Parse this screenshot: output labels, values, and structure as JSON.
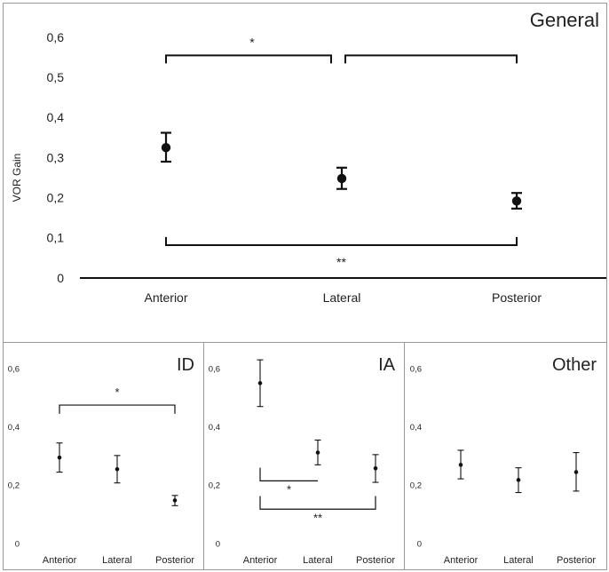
{
  "colors": {
    "ink": "#111111",
    "frame": "#999999",
    "text": "#222222"
  },
  "chart_data": [
    {
      "type": "scatter",
      "title": "General",
      "ylabel": "VOR Gain",
      "xlabel": "",
      "categories": [
        "Anterior",
        "Lateral",
        "Posterior"
      ],
      "values": [
        0.325,
        0.248,
        0.192
      ],
      "err_low": [
        0.29,
        0.222,
        0.173
      ],
      "err_high": [
        0.362,
        0.275,
        0.212
      ],
      "ylim": [
        0,
        0.6
      ],
      "yticks": [
        "0",
        "0,1",
        "0,2",
        "0,3",
        "0,4",
        "0,5",
        "0,6"
      ],
      "brackets": [
        {
          "from": 0,
          "to": 1,
          "level": 0.555,
          "drop": 0.02,
          "side": "top",
          "label": "*"
        },
        {
          "from": 1,
          "to": 2,
          "level": 0.555,
          "drop": 0.02,
          "side": "top",
          "label": ""
        },
        {
          "from": 0,
          "to": 2,
          "level": 0.082,
          "drop": 0.02,
          "side": "bottom",
          "label": "**"
        }
      ]
    },
    {
      "type": "scatter",
      "title": "ID",
      "ylabel": "",
      "xlabel": "",
      "categories": [
        "Anterior",
        "Lateral",
        "Posterior"
      ],
      "values": [
        0.295,
        0.255,
        0.148
      ],
      "err_low": [
        0.245,
        0.208,
        0.13
      ],
      "err_high": [
        0.345,
        0.302,
        0.165
      ],
      "ylim": [
        0,
        0.6
      ],
      "yticks": [
        "0",
        "0,2",
        "0,4",
        "0,6"
      ],
      "brackets": [
        {
          "from": 0,
          "to": 2,
          "level": 0.475,
          "drop": 0.03,
          "side": "top",
          "label": "*"
        }
      ]
    },
    {
      "type": "scatter",
      "title": "IA",
      "ylabel": "",
      "xlabel": "",
      "categories": [
        "Anterior",
        "Lateral",
        "Posterior"
      ],
      "values": [
        0.55,
        0.312,
        0.258
      ],
      "err_low": [
        0.47,
        0.27,
        0.21
      ],
      "err_high": [
        0.63,
        0.355,
        0.305
      ],
      "ylim": [
        0,
        0.6
      ],
      "yticks": [
        "0",
        "0,2",
        "0,4",
        "0,6"
      ],
      "brackets": [
        {
          "from": 0,
          "to": 1,
          "level": 0.215,
          "drop": 0.045,
          "side": "bottom",
          "label": "*"
        },
        {
          "from": 0,
          "to": 2,
          "level": 0.118,
          "drop": 0.045,
          "side": "bottom",
          "label": "**"
        }
      ]
    },
    {
      "type": "scatter",
      "title": "Other",
      "ylabel": "",
      "xlabel": "",
      "categories": [
        "Anterior",
        "Lateral",
        "Posterior"
      ],
      "values": [
        0.27,
        0.218,
        0.245
      ],
      "err_low": [
        0.222,
        0.175,
        0.18
      ],
      "err_high": [
        0.32,
        0.26,
        0.312
      ],
      "ylim": [
        0,
        0.6
      ],
      "yticks": [
        "0",
        "0,2",
        "0,4",
        "0,6"
      ],
      "brackets": []
    }
  ]
}
